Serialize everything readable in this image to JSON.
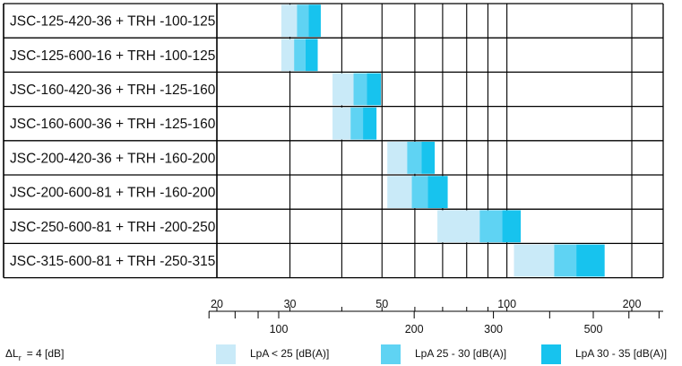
{
  "chart_data": {
    "type": "bar",
    "subtype": "horizontal-range-segmented",
    "rows": [
      {
        "label": "JSC-125-420-36 + TRH -100-125",
        "segments": [
          [
            28.6,
            31.2
          ],
          [
            31.2,
            33.3
          ],
          [
            33.3,
            35.6
          ]
        ]
      },
      {
        "label": "JSC-125-600-16 + TRH -100-125",
        "segments": [
          [
            28.6,
            30.7
          ],
          [
            30.7,
            32.7
          ],
          [
            32.7,
            35.0
          ]
        ]
      },
      {
        "label": "JSC-160-420-36 + TRH -125-160",
        "segments": [
          [
            38.0,
            42.7
          ],
          [
            42.7,
            46.0
          ],
          [
            46.0,
            49.7
          ]
        ]
      },
      {
        "label": "JSC-160-600-36 + TRH -125-160",
        "segments": [
          [
            38.0,
            42.0
          ],
          [
            42.0,
            45.0
          ],
          [
            45.0,
            48.5
          ]
        ]
      },
      {
        "label": "JSC-200-420-36 + TRH -160-200",
        "segments": [
          [
            51.5,
            57.5
          ],
          [
            57.5,
            62.3
          ],
          [
            62.3,
            67.0
          ]
        ]
      },
      {
        "label": "JSC-200-600-81 + TRH -160-200",
        "segments": [
          [
            51.5,
            59.0
          ],
          [
            59.0,
            64.5
          ],
          [
            64.5,
            72.0
          ]
        ]
      },
      {
        "label": "JSC-250-600-81 + TRH -200-250",
        "segments": [
          [
            68.0,
            86.0
          ],
          [
            86.0,
            97.5
          ],
          [
            97.5,
            108.0
          ]
        ]
      },
      {
        "label": "JSC-315-600-81 + TRH -250-315",
        "segments": [
          [
            104.0,
            130.0
          ],
          [
            130.0,
            147.0
          ],
          [
            147.0,
            172.0
          ]
        ]
      }
    ],
    "axis_top": {
      "unit": "",
      "min": 20,
      "max": 230,
      "scale": "log",
      "ticks": [
        20,
        30,
        50,
        100,
        200
      ],
      "tick_labels": [
        "20",
        "30",
        "50",
        "100",
        "200"
      ]
    },
    "axis_bottom": {
      "min": 58,
      "max": 1000,
      "scale": "log",
      "ticks": [
        100,
        200,
        300,
        500
      ],
      "tick_labels": [
        "100",
        "200",
        "300",
        "500"
      ]
    },
    "grid": true,
    "legend": {
      "position": "bottom",
      "note_prefix": "ΔL",
      "note_sub": "r",
      "note_value": "= 4 [dB]",
      "entries": [
        {
          "label": "LpA < 25 [dB(A)]",
          "color": "#c9eaf8"
        },
        {
          "label": "LpA 25 - 30 [dB(A)]",
          "color": "#5fd3f3"
        },
        {
          "label": "LpA 30 - 35 [dB(A)]",
          "color": "#17c3ee"
        }
      ]
    }
  }
}
